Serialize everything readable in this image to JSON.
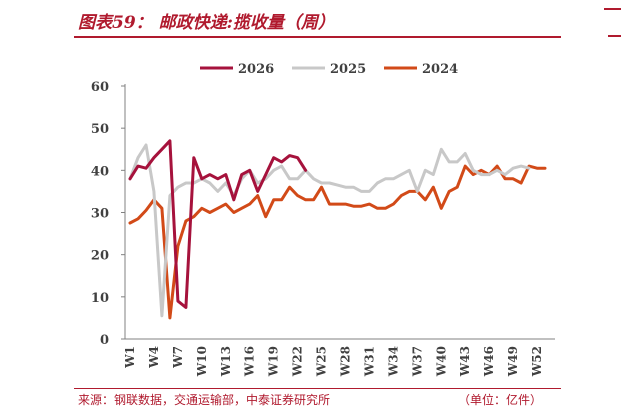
{
  "header": {
    "title": "图表59：  邮政快递:揽收量（周）"
  },
  "footer": {
    "source": "来源：钢联数据，交通运输部，中泰证券研究所",
    "unit": "（单位：亿件）"
  },
  "chart_data": {
    "type": "line",
    "title": "邮政快递:揽收量（周）",
    "ylim": [
      0,
      60
    ],
    "yticks": [
      0,
      10,
      20,
      30,
      40,
      50,
      60
    ],
    "xlim": [
      1,
      53
    ],
    "xticks": [
      "W1",
      "W4",
      "W7",
      "W10",
      "W13",
      "W16",
      "W19",
      "W22",
      "W25",
      "W28",
      "W31",
      "W34",
      "W37",
      "W40",
      "W43",
      "W46",
      "W49",
      "W52"
    ],
    "legend_position": "top",
    "series": [
      {
        "name": "2026",
        "color": "#a6123c",
        "values": [
          38,
          41,
          40.5,
          43,
          45,
          47,
          9,
          7.5,
          43,
          38,
          39,
          38,
          39,
          33,
          39,
          40,
          35,
          39,
          43,
          42,
          43.5,
          43,
          40
        ]
      },
      {
        "name": "2025",
        "color": "#c8c8c8",
        "values": [
          38,
          43,
          46,
          35,
          5.5,
          34,
          36,
          37,
          37,
          38,
          37,
          35,
          37,
          34,
          38,
          40,
          37,
          38,
          40,
          41,
          38,
          38,
          40,
          38,
          37,
          37,
          36.5,
          36,
          36,
          35,
          35,
          37,
          38,
          38,
          39,
          40,
          35,
          40,
          39,
          45,
          42,
          42,
          44,
          40,
          39,
          39,
          40,
          39,
          40.5,
          41,
          40.5
        ]
      },
      {
        "name": "2024",
        "color": "#d24a18",
        "values": [
          27.5,
          28.5,
          30.5,
          33,
          31,
          5,
          22,
          28,
          29,
          31,
          30,
          31,
          32,
          30,
          31,
          32,
          34,
          29,
          33,
          33,
          36,
          34,
          33,
          33,
          36,
          32,
          32,
          32,
          31.5,
          31.5,
          32,
          31,
          31,
          32,
          34,
          35,
          35,
          33,
          36,
          31,
          35,
          36,
          41,
          39,
          40,
          39,
          41,
          38,
          38,
          37,
          41,
          40.5,
          40.5
        ]
      }
    ]
  }
}
